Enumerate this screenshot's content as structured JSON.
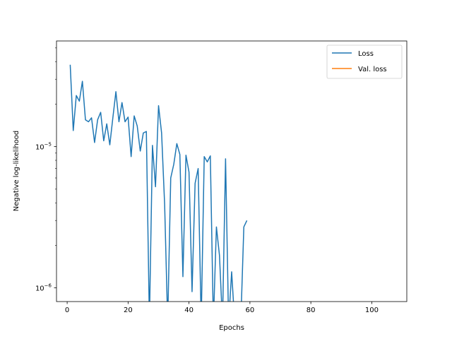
{
  "chart_data": {
    "type": "line",
    "title": "",
    "xlabel": "Epochs",
    "ylabel": "Negative log-likelihood",
    "xlim": [
      -3.5,
      111.5
    ],
    "ylim": [
      8e-07,
      5.6e-05
    ],
    "yscale": "log",
    "grid": false,
    "legend_position": "top-right",
    "x_ticks": [
      {
        "value": 0,
        "label": "0"
      },
      {
        "value": 20,
        "label": "20"
      },
      {
        "value": 40,
        "label": "40"
      },
      {
        "value": 60,
        "label": "60"
      },
      {
        "value": 80,
        "label": "80"
      },
      {
        "value": 100,
        "label": "100"
      }
    ],
    "y_ticks": [
      {
        "value": 1e-06,
        "base": "10",
        "exp": "−6"
      },
      {
        "value": 1e-05,
        "base": "10",
        "exp": "−5"
      }
    ],
    "y_minor_ticks": [
      2e-06,
      3e-06,
      4e-06,
      5e-06,
      6e-06,
      7e-06,
      8e-06,
      9e-06,
      2e-05,
      3e-05,
      4e-05,
      5e-05
    ],
    "series": [
      {
        "name": "Loss",
        "color": "#1f77b4",
        "x": [
          1,
          2,
          3,
          4,
          5,
          6,
          7,
          8,
          9,
          10,
          11,
          12,
          13,
          14,
          15,
          16,
          17,
          18,
          19,
          20,
          21,
          22,
          23,
          24,
          25,
          26,
          27,
          28,
          29,
          30,
          31,
          32,
          33,
          34,
          35,
          36,
          37,
          38,
          39,
          40,
          41,
          42,
          43,
          44,
          45,
          46,
          47,
          48,
          49,
          50,
          51,
          52,
          53,
          54,
          55,
          56,
          57,
          58,
          59
        ],
        "y": [
          3.8e-05,
          1.3e-05,
          2.3e-05,
          2.1e-05,
          2.9e-05,
          1.55e-05,
          1.5e-05,
          1.6e-05,
          1.07e-05,
          1.55e-05,
          1.75e-05,
          1.1e-05,
          1.45e-05,
          1.03e-05,
          1.6e-05,
          2.45e-05,
          1.5e-05,
          2.05e-05,
          1.5e-05,
          1.62e-05,
          8.5e-06,
          1.65e-05,
          1.4e-05,
          9.3e-06,
          1.25e-05,
          1.28e-05,
          null,
          1.02e-05,
          5.2e-06,
          1.95e-05,
          1.25e-05,
          3.9e-06,
          null,
          6e-06,
          7.5e-06,
          1.05e-05,
          8.8e-06,
          1.2e-06,
          8.7e-06,
          6.6e-06,
          9.4e-07,
          5.5e-06,
          7e-06,
          null,
          8.5e-06,
          7.8e-06,
          8.6e-06,
          null,
          2.7e-06,
          1.7e-06,
          null,
          8.2e-06,
          null,
          1.3e-06,
          null,
          null,
          null,
          2.7e-06,
          3e-06
        ]
      },
      {
        "name": "Val. loss",
        "color": "#ff7f0e",
        "x": [],
        "y": []
      }
    ]
  }
}
